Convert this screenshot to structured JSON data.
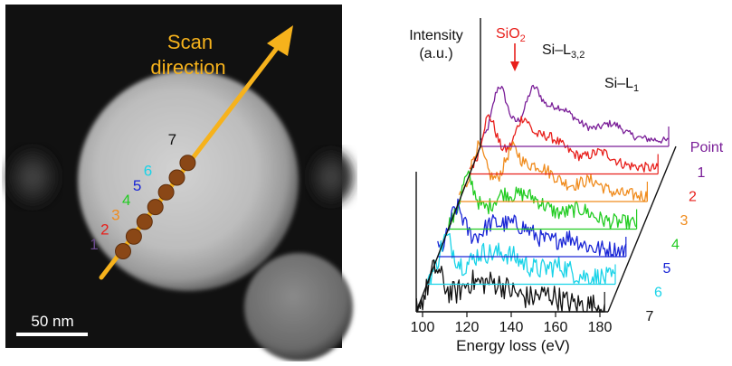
{
  "micrograph": {
    "scan_label_line1": "Scan",
    "scan_label_line2": "direction",
    "scale_bar_label": "50 nm",
    "points": [
      {
        "label": "1",
        "color": "#6a4a8c"
      },
      {
        "label": "2",
        "color": "#e8201c"
      },
      {
        "label": "3",
        "color": "#f08c1e"
      },
      {
        "label": "4",
        "color": "#22cc22"
      },
      {
        "label": "5",
        "color": "#1a26d6"
      },
      {
        "label": "6",
        "color": "#19d3e8"
      },
      {
        "label": "7",
        "color": "#111111"
      }
    ],
    "arrow_color": "#f6b21c",
    "dot_color": "#8a4716"
  },
  "spectra": {
    "y_label_line1": "Intensity",
    "y_label_line2": "(a.u.)",
    "x_label": "Energy loss (eV)",
    "x_ticks": [
      "100",
      "120",
      "140",
      "160",
      "180"
    ],
    "annotation_sio2": "SiO",
    "annotation_sio2_sub": "2",
    "annotation_sil32": "Si–L",
    "annotation_sil32_sub": "3,2",
    "annotation_sil1": "Si–L",
    "annotation_sil1_sub": "1",
    "point_header": "Point",
    "point_labels": [
      "1",
      "2",
      "3",
      "4",
      "5",
      "6",
      "7"
    ],
    "colors": [
      "#7a1e98",
      "#e8201c",
      "#f08c1e",
      "#22cc22",
      "#1a26d6",
      "#19d3e8",
      "#111111"
    ],
    "sio2_color": "#e8201c"
  }
}
